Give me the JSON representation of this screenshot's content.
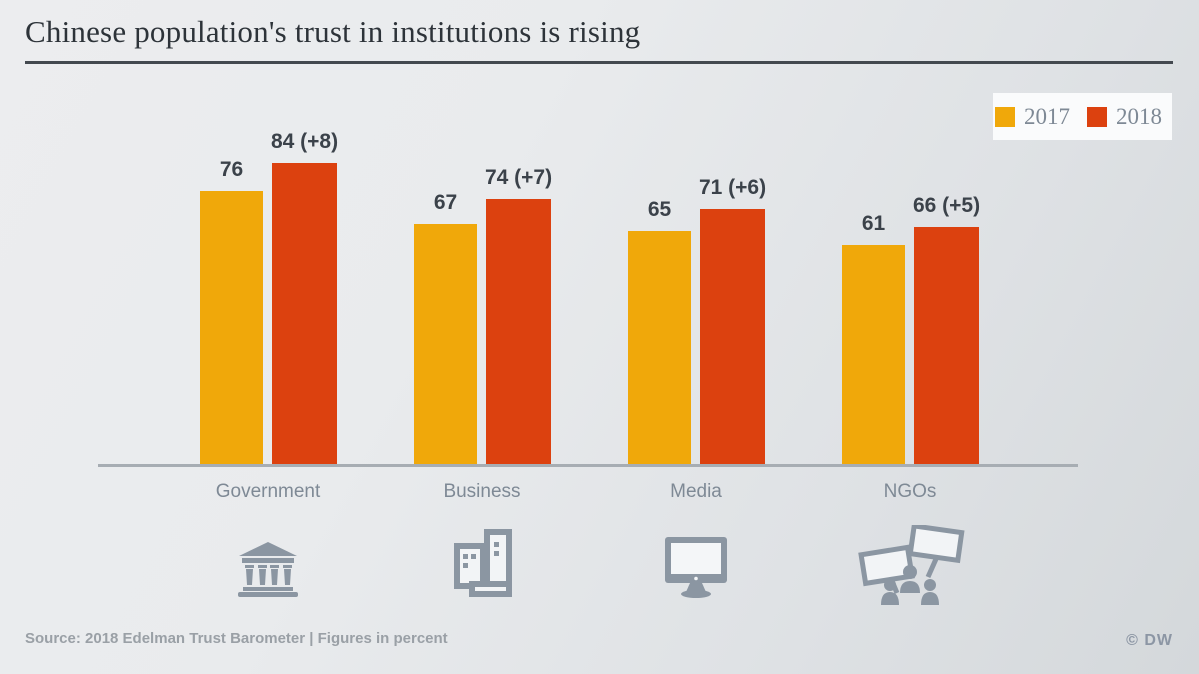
{
  "header": {
    "title": "Chinese population's trust in institutions is rising"
  },
  "chart_data": {
    "type": "bar",
    "title": "Chinese population's trust in institutions is rising",
    "categories": [
      "Government",
      "Business",
      "Media",
      "NGOs"
    ],
    "series": [
      {
        "name": "2017",
        "color": "#f0a80a",
        "values": [
          76,
          67,
          65,
          61
        ],
        "labels": [
          "76",
          "67",
          "65",
          "61"
        ]
      },
      {
        "name": "2018",
        "color": "#dc410f",
        "values": [
          84,
          74,
          71,
          66
        ],
        "labels": [
          "84 (+8)",
          "74 (+7)",
          "71 (+6)",
          "66 (+5)"
        ]
      }
    ],
    "ylim": [
      0,
      100
    ],
    "unit": "percent",
    "grid": false,
    "legend_position": "top-right",
    "category_icons": [
      "government-building-icon",
      "office-buildings-icon",
      "tv-monitor-icon",
      "protest-signs-icon"
    ],
    "icon_color": "#8b96a2"
  },
  "footer": {
    "source": "Source: 2018 Edelman Trust Barometer | Figures in percent",
    "credit": "© DW"
  }
}
